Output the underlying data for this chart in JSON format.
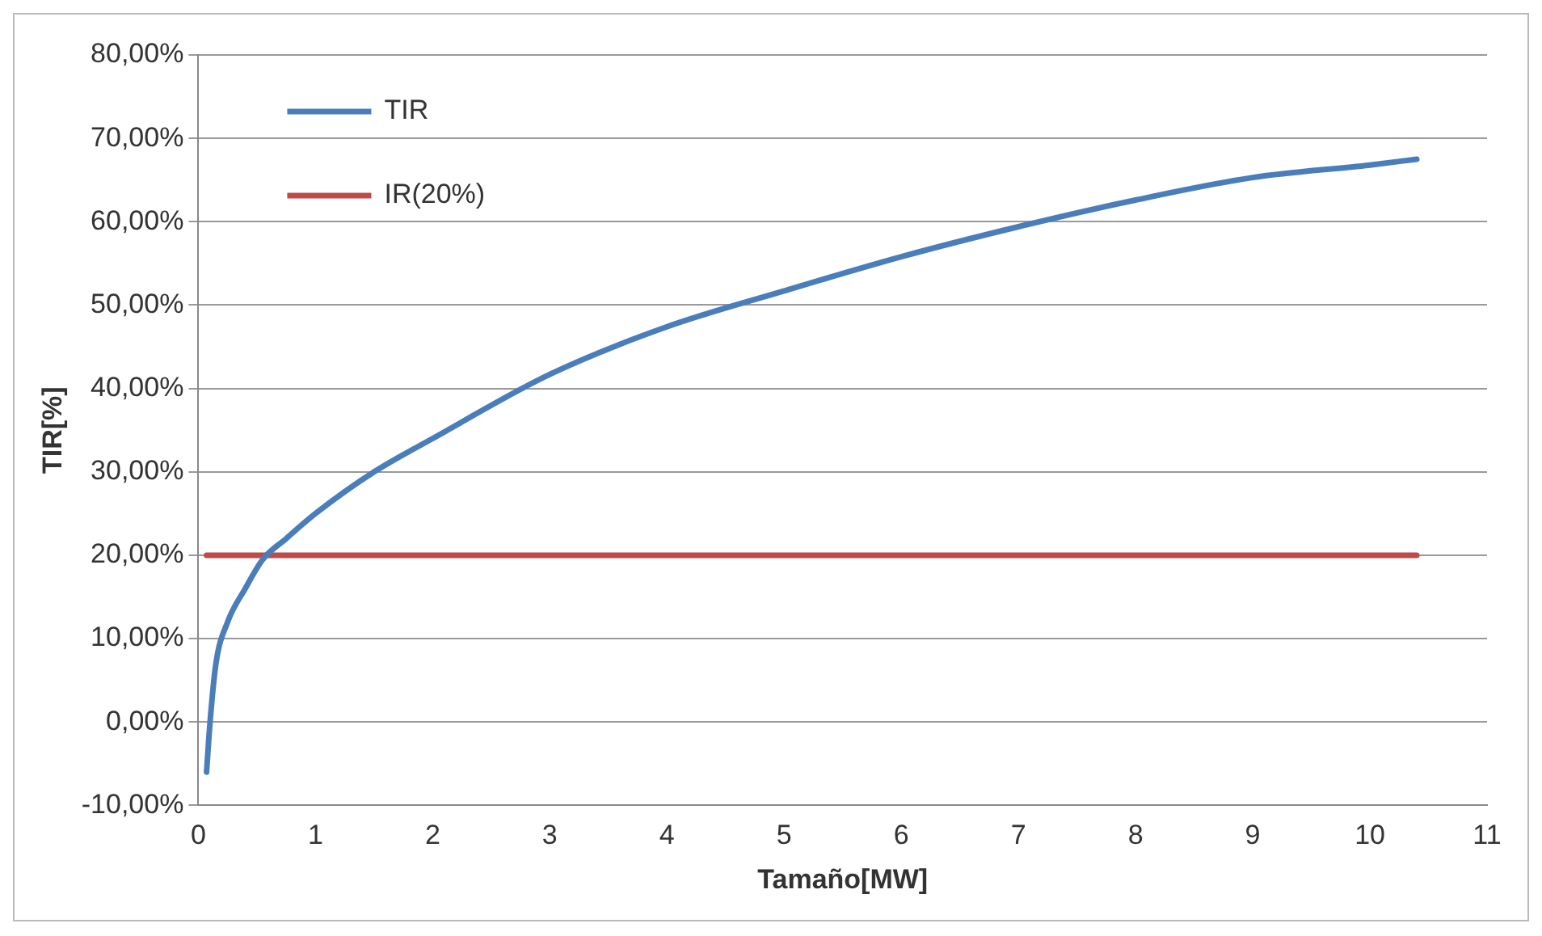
{
  "chart_data": {
    "type": "line",
    "xlabel": "Tamaño[MW]",
    "ylabel": "TIR[%]",
    "xlim": [
      0,
      11
    ],
    "xticks": [
      0,
      1,
      2,
      3,
      4,
      5,
      6,
      7,
      8,
      9,
      10,
      11
    ],
    "ylim": [
      -10,
      80
    ],
    "yticks": [
      {
        "value": -10,
        "label": "-10,00%"
      },
      {
        "value": 0,
        "label": "0,00%"
      },
      {
        "value": 10,
        "label": "10,00%"
      },
      {
        "value": 20,
        "label": "20,00%"
      },
      {
        "value": 30,
        "label": "30,00%"
      },
      {
        "value": 40,
        "label": "40,00%"
      },
      {
        "value": 50,
        "label": "50,00%"
      },
      {
        "value": 60,
        "label": "60,00%"
      },
      {
        "value": 70,
        "label": "70,00%"
      },
      {
        "value": 80,
        "label": "80,00%"
      }
    ],
    "grid": "y",
    "legend": "top left",
    "marker": "none",
    "line_style": "solid",
    "series": [
      {
        "name": "TIR",
        "color": "#4a7ebb",
        "x": [
          0.07,
          0.1,
          0.15,
          0.25,
          0.4,
          0.55,
          0.75,
          1,
          1.5,
          2,
          3,
          4,
          5,
          6,
          7,
          8,
          9,
          10,
          10.4
        ],
        "values": [
          -6,
          0,
          7,
          12,
          16,
          19.5,
          22,
          25,
          30,
          34,
          41.7,
          47.4,
          51.7,
          55.8,
          59.4,
          62.6,
          65.3,
          66.8,
          67.5
        ]
      },
      {
        "name": "IR(20%)",
        "color": "#be4b48",
        "x": [
          0.07,
          10.4
        ],
        "values": [
          20,
          20
        ]
      }
    ]
  }
}
